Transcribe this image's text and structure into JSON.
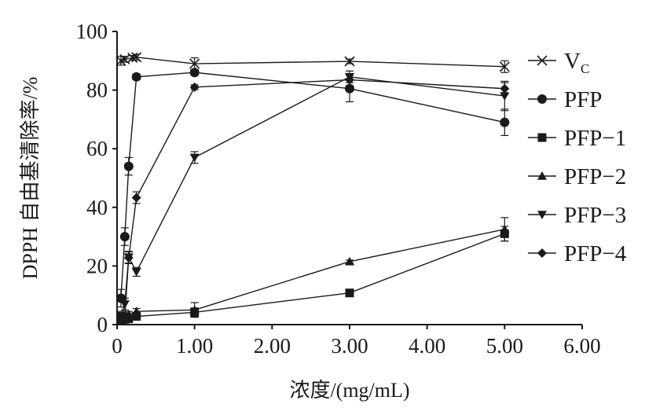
{
  "chart_data": {
    "type": "line",
    "xlabel": "浓度/(mg/mL)",
    "ylabel": "DPPH 自由基清除率/%",
    "xlim": [
      0,
      6
    ],
    "ylim": [
      0,
      100
    ],
    "x_ticks": [
      "0",
      "1.00",
      "2.00",
      "3.00",
      "4.00",
      "5.00",
      "6.00"
    ],
    "y_ticks": [
      "0",
      "20",
      "40",
      "60",
      "80",
      "100"
    ],
    "grid": false,
    "legend_position": "right",
    "series": [
      {
        "name": "VC",
        "name_main": "V",
        "name_sub": "C",
        "marker": "x",
        "x": [
          0.05,
          0.1,
          0.2,
          0.25,
          1.0,
          3.0,
          5.0
        ],
        "y": [
          90,
          90.5,
          91,
          91.2,
          89,
          89.8,
          88
        ],
        "err": [
          1.5,
          1,
          0.8,
          1,
          2,
          0.8,
          2
        ]
      },
      {
        "name": "PFP",
        "marker": "circle",
        "x": [
          0.05,
          0.1,
          0.15,
          0.25,
          1.0,
          3.0,
          5.0
        ],
        "y": [
          9,
          30,
          54,
          84.5,
          86,
          80.5,
          69
        ],
        "err": [
          3,
          3,
          3,
          1,
          1,
          4.5,
          4.5
        ]
      },
      {
        "name": "PFP−1",
        "marker": "square",
        "x": [
          0.05,
          0.1,
          0.15,
          0.25,
          1.0,
          3.0,
          5.0
        ],
        "y": [
          1.5,
          1.8,
          2,
          2.8,
          4.2,
          10.8,
          31
        ],
        "err": [
          1,
          1,
          1,
          1,
          1.5,
          0.5,
          2.5
        ]
      },
      {
        "name": "PFP−2",
        "marker": "triangle-up",
        "x": [
          0.05,
          0.1,
          0.15,
          0.25,
          1.0,
          3.0,
          5.0
        ],
        "y": [
          2,
          2.8,
          3.5,
          4.5,
          5,
          21.5,
          32.5
        ],
        "err": [
          1,
          1,
          1,
          1,
          2.5,
          0.5,
          4
        ]
      },
      {
        "name": "PFP−3",
        "marker": "triangle-down",
        "x": [
          0.05,
          0.1,
          0.15,
          0.25,
          1.0,
          3.0,
          5.0
        ],
        "y": [
          3,
          7,
          23,
          18,
          57,
          84.5,
          78
        ],
        "err": [
          1.5,
          2,
          2,
          1.5,
          2,
          2,
          5
        ]
      },
      {
        "name": "PFP−4",
        "marker": "diamond",
        "x": [
          0.05,
          0.1,
          0.15,
          0.25,
          1.0,
          3.0,
          5.0
        ],
        "y": [
          1.5,
          3,
          22.8,
          43.3,
          81,
          83.5,
          80.5
        ],
        "err": [
          1,
          1,
          2,
          2,
          0.8,
          2,
          2
        ]
      }
    ]
  }
}
